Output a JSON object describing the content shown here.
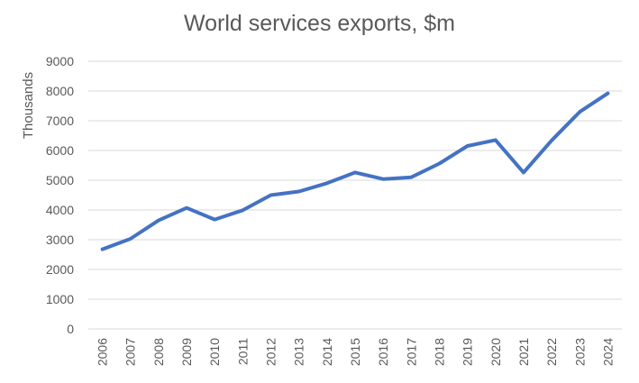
{
  "chart_data": {
    "type": "line",
    "title": "World services exports, $m",
    "xlabel": "",
    "ylabel": "Thousands",
    "ylim": [
      0,
      9000
    ],
    "ytick_step": 1000,
    "grid": true,
    "legend": "none",
    "categories": [
      "2006",
      "2007",
      "2008",
      "2009",
      "2010",
      "2011",
      "2012",
      "2013",
      "2014",
      "2015",
      "2016",
      "2017",
      "2018",
      "2019",
      "2020",
      "2021",
      "2022",
      "2023",
      "2024"
    ],
    "series": [
      {
        "color": "#4472C4",
        "values": [
          2680,
          3030,
          3650,
          4070,
          3680,
          3990,
          4500,
          4620,
          4900,
          5260,
          5040,
          5100,
          5560,
          6150,
          6350,
          5260,
          6340,
          7300,
          7920
        ]
      }
    ]
  }
}
